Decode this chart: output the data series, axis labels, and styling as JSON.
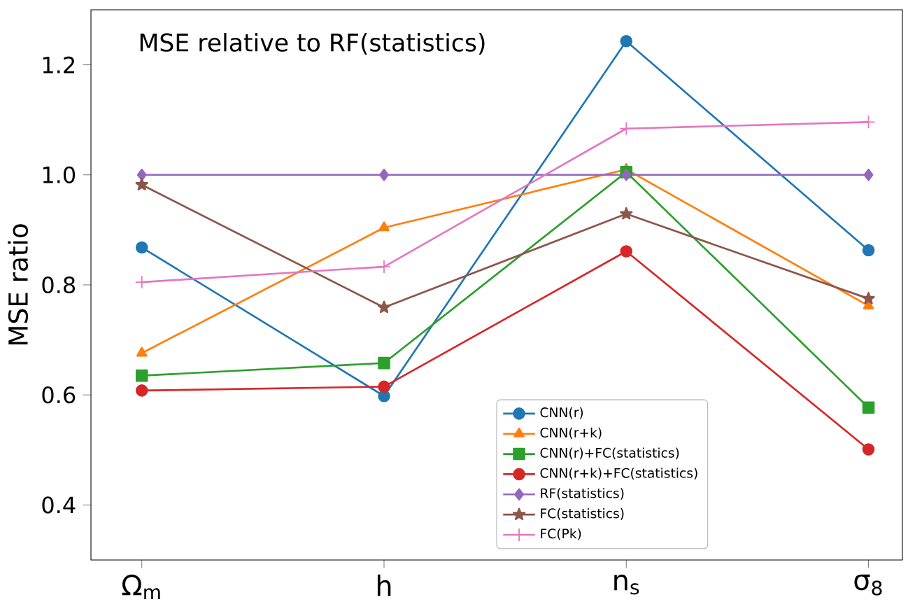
{
  "chart_data": {
    "type": "line",
    "title": "MSE relative to RF(statistics)",
    "ylabel": "MSE ratio",
    "categories": [
      "Ω$_{m}$",
      "h",
      "n$_{s}$",
      "σ$_{8}$"
    ],
    "ylim": [
      0.3,
      1.3
    ],
    "yticks": [
      0.4,
      0.6,
      0.8,
      {
        "value": 1.0,
        "label": "1.0"
      },
      1.2
    ],
    "legend": "bottom",
    "grid": false,
    "series": [
      {
        "name": "CNN(r)",
        "color": "#1f77b4",
        "marker": "circle",
        "values": [
          0.868,
          0.598,
          1.243,
          0.863
        ]
      },
      {
        "name": "CNN(r+k)",
        "color": "#ff7f0e",
        "marker": "triangle",
        "values": [
          0.676,
          0.904,
          1.01,
          0.762
        ]
      },
      {
        "name": "CNN(r)+FC(statistics)",
        "color": "#2ca02c",
        "marker": "square",
        "values": [
          0.635,
          0.658,
          1.005,
          0.577
        ]
      },
      {
        "name": "CNN(r+k)+FC(statistics)",
        "color": "#d62728",
        "marker": "circle",
        "values": [
          0.608,
          0.615,
          0.861,
          0.501
        ]
      },
      {
        "name": "RF(statistics)",
        "color": "#9467bd",
        "marker": "diamond",
        "values": [
          1.0,
          1.0,
          1.0,
          1.0
        ]
      },
      {
        "name": "FC(statistics)",
        "color": "#8c564b",
        "marker": "star",
        "values": [
          0.982,
          0.759,
          0.929,
          0.775
        ]
      },
      {
        "name": "FC(Pk)",
        "color": "#e377c2",
        "marker": "cross",
        "values": [
          0.805,
          0.833,
          1.084,
          1.096
        ]
      }
    ]
  }
}
